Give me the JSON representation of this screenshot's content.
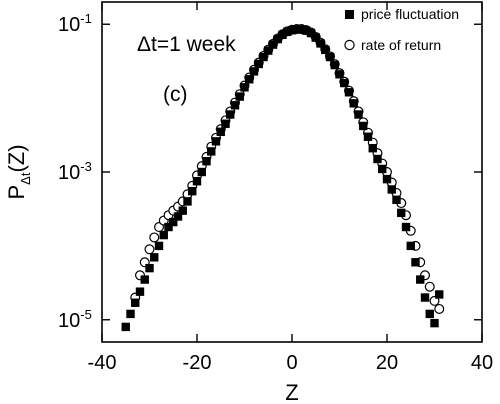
{
  "chart_data": {
    "type": "scatter",
    "title": "",
    "xlabel": "Z",
    "ylabel_main": "P",
    "ylabel_sub": "Δt",
    "ylabel_tail": "(Z)",
    "xlim": [
      -40,
      40
    ],
    "ylim": [
      5e-06,
      0.2
    ],
    "yscale": "log",
    "grid": false,
    "legend_position": "top-right",
    "x_ticks": [
      {
        "value": -40,
        "label": "-40"
      },
      {
        "value": -20,
        "label": "-20"
      },
      {
        "value": 0,
        "label": "0"
      },
      {
        "value": 20,
        "label": "20"
      },
      {
        "value": 40,
        "label": "40"
      }
    ],
    "y_ticks": [
      {
        "value": 0.1,
        "base": "10",
        "exp": "-1"
      },
      {
        "value": 0.001,
        "base": "10",
        "exp": "-3"
      },
      {
        "value": 1e-05,
        "base": "10",
        "exp": "-5"
      }
    ],
    "annotations": {
      "timescale": "Δt=1 week",
      "panel": "(c)"
    },
    "series": [
      {
        "name": "price fluctuation",
        "marker": "filled-square",
        "color": "#000000",
        "points": [
          [
            -35,
            8e-06
          ],
          [
            -34,
            1.2e-05
          ],
          [
            -33,
            1.7e-05
          ],
          [
            -32,
            2.4e-05
          ],
          [
            -31,
            3.5e-05
          ],
          [
            -30,
            5e-05
          ],
          [
            -29,
            7e-05
          ],
          [
            -28,
            0.0001
          ],
          [
            -27,
            0.00014
          ],
          [
            -26,
            0.00018
          ],
          [
            -25,
            0.00021
          ],
          [
            -24,
            0.00025
          ],
          [
            -23,
            0.0003
          ],
          [
            -22,
            0.0004
          ],
          [
            -21,
            0.00055
          ],
          [
            -20,
            0.00075
          ],
          [
            -19,
            0.001
          ],
          [
            -18,
            0.0014
          ],
          [
            -17,
            0.0019
          ],
          [
            -16,
            0.0026
          ],
          [
            -15,
            0.0035
          ],
          [
            -14,
            0.0045
          ],
          [
            -13,
            0.006
          ],
          [
            -12,
            0.008
          ],
          [
            -11,
            0.0105
          ],
          [
            -10,
            0.014
          ],
          [
            -9,
            0.018
          ],
          [
            -8,
            0.023
          ],
          [
            -7,
            0.029
          ],
          [
            -6,
            0.036
          ],
          [
            -5,
            0.044
          ],
          [
            -4,
            0.053
          ],
          [
            -3,
            0.063
          ],
          [
            -2,
            0.072
          ],
          [
            -1,
            0.079
          ],
          [
            0,
            0.083
          ],
          [
            1,
            0.085
          ],
          [
            2,
            0.085
          ],
          [
            3,
            0.082
          ],
          [
            4,
            0.076
          ],
          [
            5,
            0.066
          ],
          [
            6,
            0.055
          ],
          [
            7,
            0.045
          ],
          [
            8,
            0.036
          ],
          [
            9,
            0.028
          ],
          [
            10,
            0.021
          ],
          [
            11,
            0.016
          ],
          [
            12,
            0.012
          ],
          [
            13,
            0.0085
          ],
          [
            14,
            0.006
          ],
          [
            15,
            0.0042
          ],
          [
            16,
            0.003
          ],
          [
            17,
            0.0021
          ],
          [
            18,
            0.0015
          ],
          [
            19,
            0.0011
          ],
          [
            20,
            0.0008
          ],
          [
            21,
            0.00058
          ],
          [
            22,
            0.00042
          ],
          [
            23,
            0.00028
          ],
          [
            24,
            0.00018
          ],
          [
            25,
            0.0001
          ],
          [
            26,
            6e-05
          ],
          [
            27,
            3.5e-05
          ],
          [
            28,
            2e-05
          ],
          [
            29,
            1.2e-05
          ],
          [
            30,
            9e-06
          ],
          [
            31,
            2.2e-05
          ]
        ]
      },
      {
        "name": "rate of return",
        "marker": "open-circle",
        "color": "#000000",
        "points": [
          [
            -33,
            2e-05
          ],
          [
            -32,
            4e-05
          ],
          [
            -31,
            6e-05
          ],
          [
            -30,
            9e-05
          ],
          [
            -29,
            0.00013
          ],
          [
            -28,
            0.00018
          ],
          [
            -27,
            0.00022
          ],
          [
            -26,
            0.00026
          ],
          [
            -25,
            0.0003
          ],
          [
            -24,
            0.00034
          ],
          [
            -23,
            0.0004
          ],
          [
            -22,
            0.0005
          ],
          [
            -21,
            0.00065
          ],
          [
            -20,
            0.0009
          ],
          [
            -19,
            0.0012
          ],
          [
            -18,
            0.0016
          ],
          [
            -17,
            0.0022
          ],
          [
            -16,
            0.0029
          ],
          [
            -15,
            0.0038
          ],
          [
            -14,
            0.005
          ],
          [
            -13,
            0.0066
          ],
          [
            -12,
            0.0087
          ],
          [
            -11,
            0.0113
          ],
          [
            -10,
            0.0148
          ],
          [
            -9,
            0.019
          ],
          [
            -8,
            0.0242
          ],
          [
            -7,
            0.0302
          ],
          [
            -6,
            0.0372
          ],
          [
            -5,
            0.0452
          ],
          [
            -4,
            0.0542
          ],
          [
            -3,
            0.0642
          ],
          [
            -2,
            0.0732
          ],
          [
            -1,
            0.0802
          ],
          [
            0,
            0.0842
          ],
          [
            1,
            0.0862
          ],
          [
            2,
            0.0862
          ],
          [
            3,
            0.0832
          ],
          [
            4,
            0.0772
          ],
          [
            5,
            0.0672
          ],
          [
            6,
            0.0562
          ],
          [
            7,
            0.0458
          ],
          [
            8,
            0.0368
          ],
          [
            9,
            0.0288
          ],
          [
            10,
            0.0218
          ],
          [
            11,
            0.0167
          ],
          [
            12,
            0.0126
          ],
          [
            13,
            0.0091
          ],
          [
            14,
            0.0066
          ],
          [
            15,
            0.0047
          ],
          [
            16,
            0.0034
          ],
          [
            17,
            0.0025
          ],
          [
            18,
            0.0018
          ],
          [
            19,
            0.0013
          ],
          [
            20,
            0.001
          ],
          [
            21,
            0.00072
          ],
          [
            22,
            0.00052
          ],
          [
            23,
            0.00038
          ],
          [
            24,
            0.00026
          ],
          [
            25,
            0.00016
          ],
          [
            26,
            0.0001
          ],
          [
            27,
            6e-05
          ],
          [
            28,
            4e-05
          ],
          [
            29,
            2.8e-05
          ],
          [
            30,
            1.8e-05
          ],
          [
            31,
            1.4e-05
          ]
        ]
      }
    ]
  }
}
